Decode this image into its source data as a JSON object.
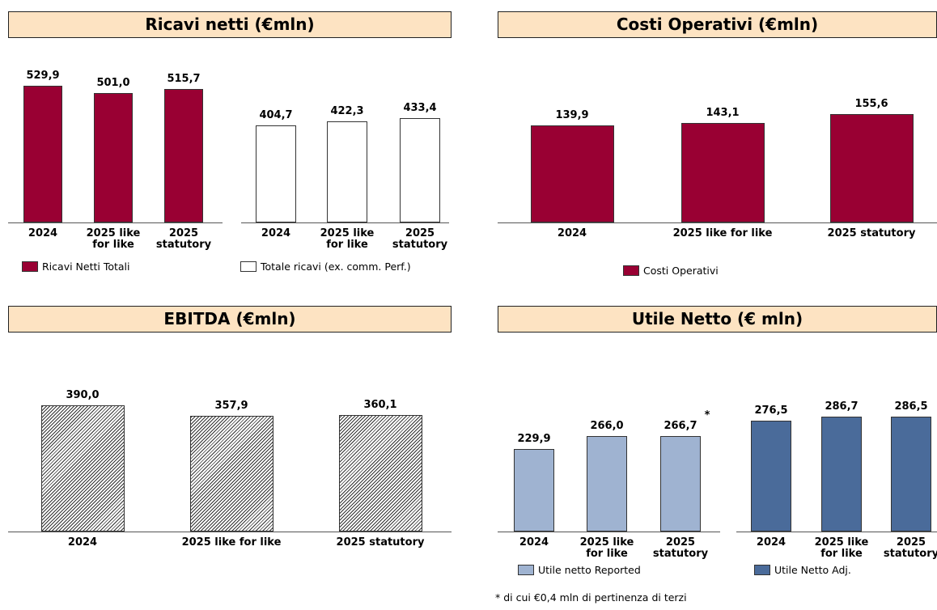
{
  "chart_data": [
    {
      "type": "bar",
      "title": "Ricavi netti (€mln)",
      "categories": [
        "2024",
        "2025 like for like",
        "2025 statutory"
      ],
      "values": [
        529.9,
        501.0,
        515.7
      ],
      "value_labels": [
        "529,9",
        "501,0",
        "515,7"
      ],
      "series_name": "Ricavi Netti Totali",
      "color": "#990033"
    },
    {
      "type": "bar",
      "categories": [
        "2024",
        "2025 like for like",
        "2025 statutory"
      ],
      "values": [
        404.7,
        422.3,
        433.4
      ],
      "value_labels": [
        "404,7",
        "422,3",
        "433,4"
      ],
      "series_name": "Totale ricavi (ex. comm. Perf.)",
      "color": "#ffffff"
    },
    {
      "type": "bar",
      "title": "Costi Operativi (€mln)",
      "categories": [
        "2024",
        "2025 like for like",
        "2025 statutory"
      ],
      "values": [
        139.9,
        143.1,
        155.6
      ],
      "value_labels": [
        "139,9",
        "143,1",
        "155,6"
      ],
      "series_name": "Costi Operativi",
      "color": "#990033"
    },
    {
      "type": "bar",
      "title": "EBITDA (€mln)",
      "categories": [
        "2024",
        "2025 like for like",
        "2025 statutory"
      ],
      "values": [
        390.0,
        357.9,
        360.1
      ],
      "value_labels": [
        "390,0",
        "357,9",
        "360,1"
      ],
      "color": "#ffffff",
      "pattern": "hatch"
    },
    {
      "type": "bar",
      "title": "Utile Netto (€ mln)",
      "categories": [
        "2024",
        "2025 like for like",
        "2025 statutory"
      ],
      "values": [
        229.9,
        266.0,
        266.7
      ],
      "value_labels": [
        "229,9",
        "266,0",
        "266,7"
      ],
      "series_name": "Utile netto Reported",
      "color": "#9fb3d1",
      "annotation": "*",
      "footnote": "* di cui €0,4 mln di pertinenza di terzi"
    },
    {
      "type": "bar",
      "categories": [
        "2024",
        "2025 like for like",
        "2025 statutory"
      ],
      "values": [
        276.5,
        286.7,
        286.5
      ],
      "value_labels": [
        "276,5",
        "286,7",
        "286,5"
      ],
      "series_name": "Utile Netto Adj.",
      "color": "#4a6b9a"
    }
  ]
}
